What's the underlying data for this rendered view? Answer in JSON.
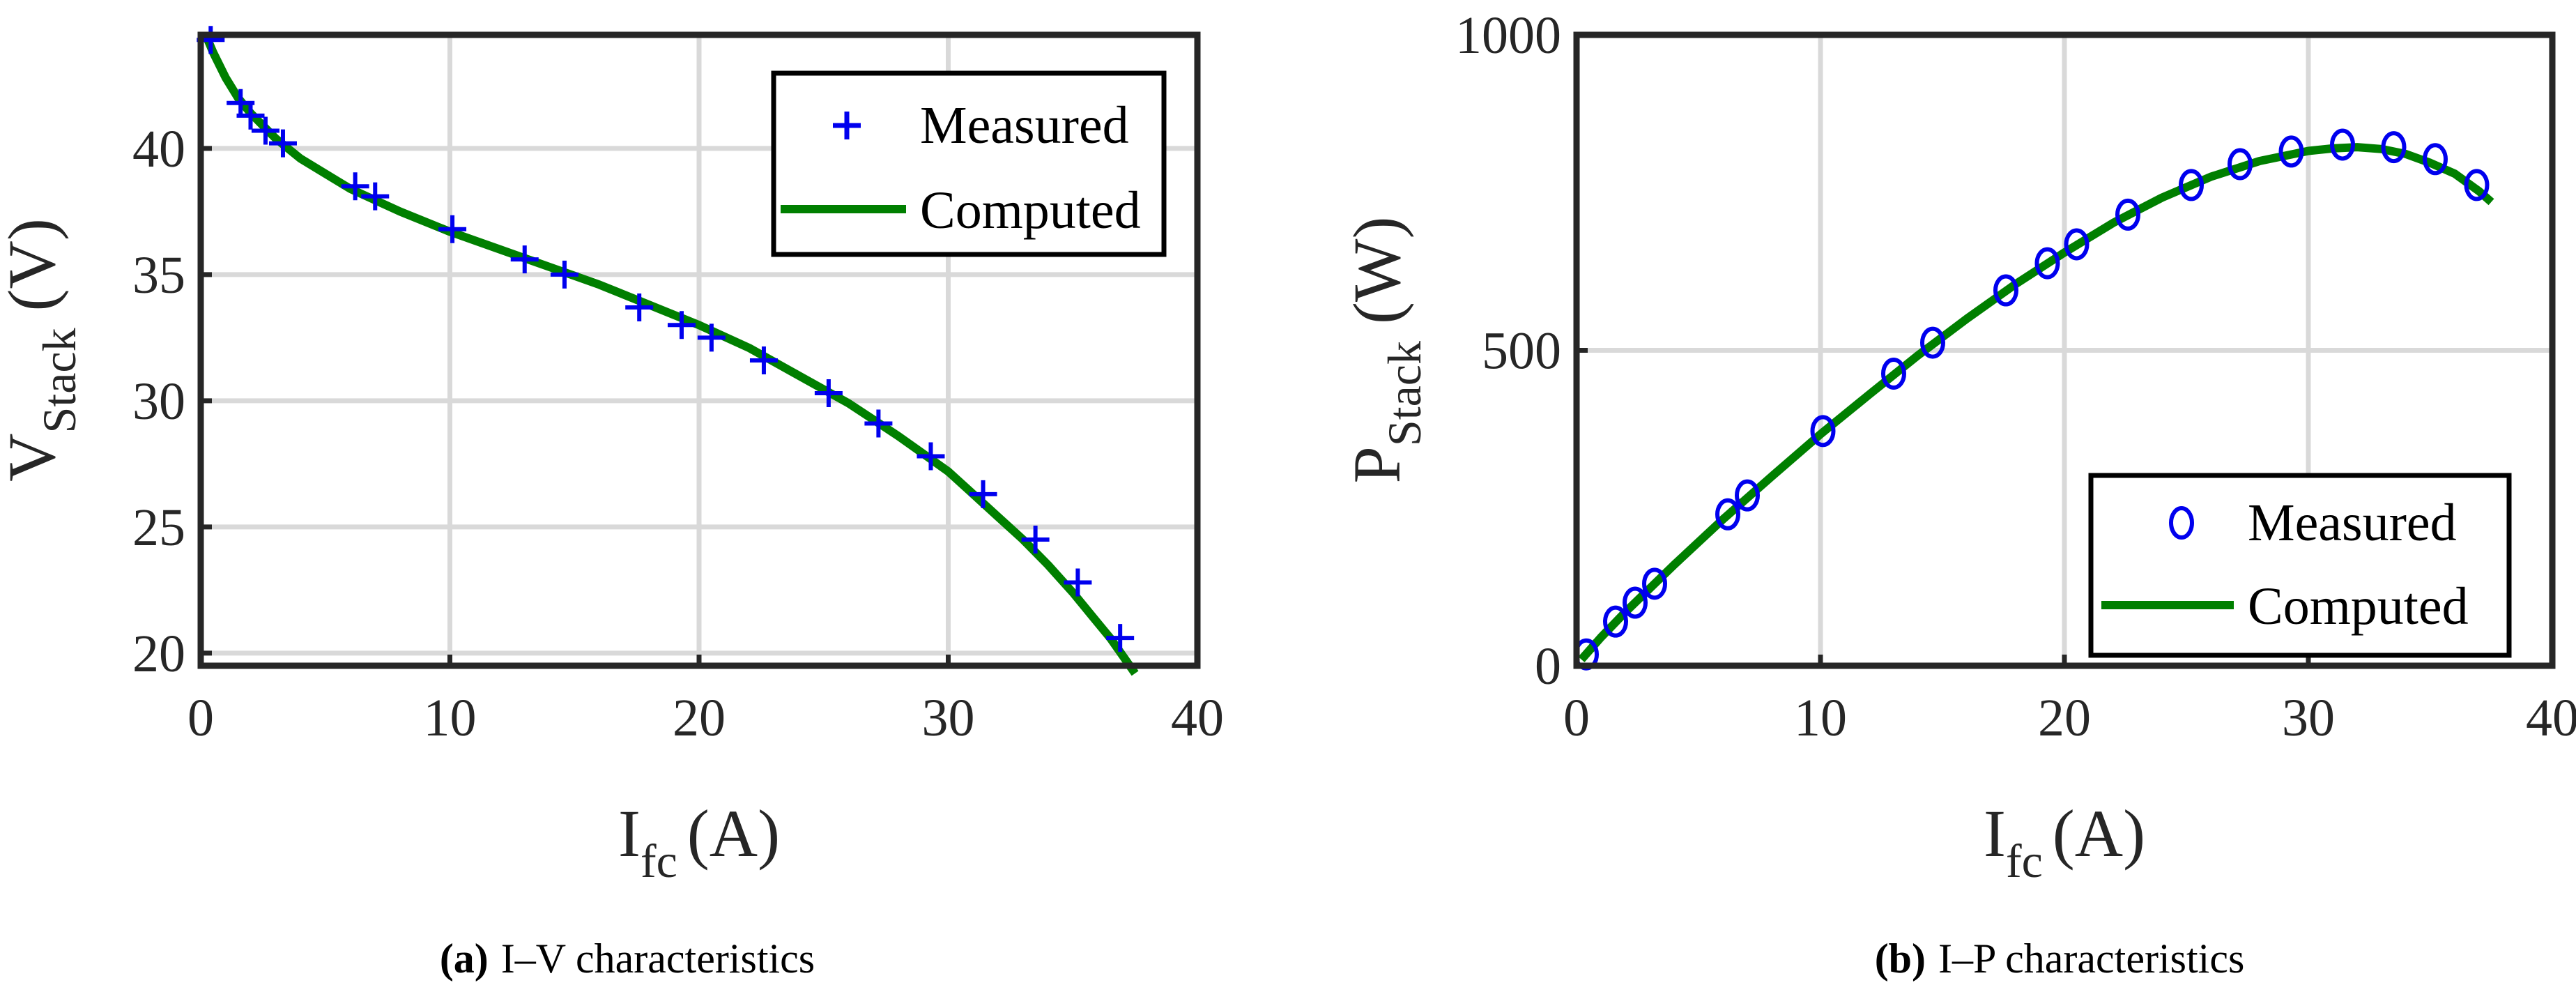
{
  "chart_data": [
    {
      "id": "a",
      "type": "line",
      "caption_label": "(a)",
      "caption_text": "I–V characteristics",
      "xlabel_main": "I",
      "xlabel_sub": "fc",
      "xlabel_unit": "(A)",
      "ylabel_main": "V",
      "ylabel_sub": "Stack",
      "ylabel_unit": "(V)",
      "xlim": [
        0,
        40
      ],
      "ylim": [
        19.5,
        44.5
      ],
      "xticks": [
        0,
        10,
        20,
        30,
        40
      ],
      "yticks": [
        20,
        25,
        30,
        35,
        40
      ],
      "grid": true,
      "legend_position": "top-right",
      "series": [
        {
          "name": "Measured",
          "style": "plus",
          "color": "#0000ee",
          "x": [
            0.4,
            1.6,
            2.0,
            2.6,
            3.3,
            6.2,
            7.0,
            10.1,
            13.0,
            14.6,
            17.6,
            19.3,
            20.5,
            22.6,
            25.2,
            27.2,
            29.3,
            31.4,
            33.5,
            35.2,
            36.9
          ],
          "y": [
            44.3,
            41.8,
            41.3,
            40.7,
            40.2,
            38.5,
            38.1,
            36.8,
            35.6,
            35.0,
            33.7,
            33.0,
            32.5,
            31.6,
            30.3,
            29.1,
            27.8,
            26.3,
            24.5,
            22.8,
            20.6
          ]
        },
        {
          "name": "Computed",
          "style": "line",
          "color": "#007f00",
          "x": [
            0.2,
            0.5,
            1.0,
            1.5,
            2.0,
            3.0,
            4.0,
            6.0,
            8.0,
            10.0,
            12.0,
            14.0,
            16.0,
            18.0,
            20.0,
            22.0,
            24.0,
            26.0,
            28.0,
            30.0,
            31.0,
            32.0,
            33.0,
            34.0,
            35.0,
            36.0,
            36.5,
            37.0,
            37.5
          ],
          "y": [
            44.5,
            43.8,
            42.8,
            42.0,
            41.4,
            40.4,
            39.6,
            38.4,
            37.5,
            36.7,
            36.0,
            35.3,
            34.6,
            33.8,
            33.0,
            32.1,
            31.0,
            29.9,
            28.6,
            27.2,
            26.3,
            25.4,
            24.5,
            23.5,
            22.4,
            21.2,
            20.6,
            19.9,
            19.2
          ]
        }
      ]
    },
    {
      "id": "b",
      "type": "line",
      "caption_label": "(b)",
      "caption_text": "I–P characteristics",
      "xlabel_main": "I",
      "xlabel_sub": "fc",
      "xlabel_unit": "(A)",
      "ylabel_main": "P",
      "ylabel_sub": "Stack",
      "ylabel_unit": "(W)",
      "xlim": [
        0,
        40
      ],
      "ylim": [
        0,
        1000
      ],
      "xticks": [
        0,
        10,
        20,
        30,
        40
      ],
      "yticks": [
        0,
        500,
        1000
      ],
      "grid": true,
      "legend_position": "bottom-right",
      "series": [
        {
          "name": "Measured",
          "style": "circle",
          "color": "#0000ee",
          "x": [
            0.4,
            1.6,
            2.4,
            3.2,
            6.2,
            7.0,
            10.1,
            13.0,
            14.6,
            17.6,
            19.3,
            20.5,
            22.6,
            25.2,
            27.2,
            29.3,
            31.4,
            33.5,
            35.2,
            36.9
          ],
          "y": [
            18,
            70,
            100,
            130,
            240,
            270,
            372,
            463,
            512,
            595,
            638,
            668,
            715,
            762,
            795,
            815,
            826,
            822,
            803,
            762
          ]
        },
        {
          "name": "Computed",
          "style": "line",
          "color": "#007f00",
          "x": [
            0.2,
            1.0,
            2.0,
            4.0,
            6.0,
            8.0,
            10.0,
            12.0,
            14.0,
            16.0,
            18.0,
            20.0,
            22.0,
            24.0,
            26.0,
            28.0,
            30.0,
            31.0,
            32.0,
            33.0,
            34.0,
            35.0,
            36.0,
            37.0,
            37.5
          ],
          "y": [
            10,
            45,
            85,
            160,
            232,
            300,
            367,
            430,
            492,
            550,
            605,
            655,
            702,
            742,
            775,
            800,
            816,
            820,
            822,
            819,
            811,
            797,
            780,
            752,
            735
          ]
        }
      ]
    }
  ]
}
